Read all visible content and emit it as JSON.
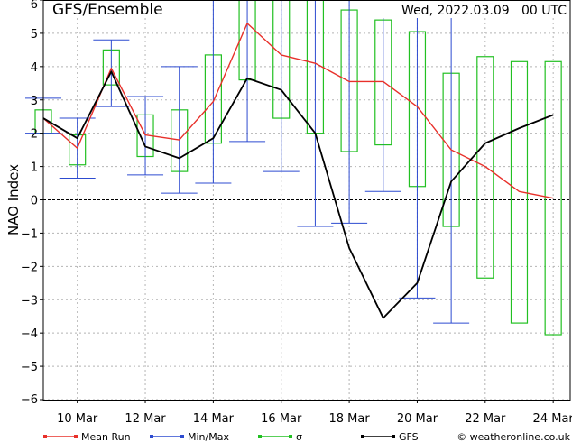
{
  "chart_data": {
    "type": "line",
    "title": "GFS/Ensemble",
    "subtitle": "Wed, 2022.03.09   00 UTC",
    "ylabel": "NAO Index",
    "xlabel": "",
    "xlim": [
      0,
      15.5
    ],
    "ylim": [
      -6,
      6
    ],
    "yticks": [
      -6,
      -5,
      -4,
      -3,
      -2,
      -1,
      0,
      1,
      2,
      3,
      4,
      5,
      6
    ],
    "xticks": [
      {
        "x": 1,
        "label": "10 Mar"
      },
      {
        "x": 3,
        "label": "12 Mar"
      },
      {
        "x": 5,
        "label": "14 Mar"
      },
      {
        "x": 7,
        "label": "16 Mar"
      },
      {
        "x": 9,
        "label": "18 Mar"
      },
      {
        "x": 11,
        "label": "20 Mar"
      },
      {
        "x": 13,
        "label": "22 Mar"
      },
      {
        "x": 15,
        "label": "24 Mar"
      }
    ],
    "x": [
      0,
      1,
      2,
      3,
      4,
      5,
      6,
      7,
      8,
      9,
      10,
      11,
      12,
      13,
      14,
      15,
      15.5
    ],
    "series": [
      {
        "name": "Mean Run",
        "color": "#e8302a",
        "values": [
          2.45,
          1.55,
          3.95,
          1.95,
          1.8,
          2.95,
          5.3,
          4.35,
          4.1,
          3.55,
          3.55,
          2.8,
          1.5,
          1.0,
          0.25,
          0.05,
          null
        ]
      },
      {
        "name": "GFS",
        "color": "#000000",
        "values": [
          2.45,
          1.85,
          3.85,
          1.6,
          1.25,
          1.85,
          3.65,
          3.3,
          2.0,
          -1.45,
          -3.55,
          -2.5,
          0.55,
          1.7,
          2.15,
          2.55,
          null
        ]
      }
    ],
    "minmax": {
      "name": "Min/Max",
      "color": "#2d4bd0",
      "min": [
        2.0,
        0.65,
        2.8,
        0.75,
        0.2,
        0.5,
        1.75,
        0.85,
        -0.8,
        -0.7,
        0.25,
        -2.95,
        -3.7,
        null,
        null,
        null,
        null
      ],
      "max": [
        3.05,
        2.45,
        4.8,
        3.1,
        4.0,
        6.0,
        6.0,
        6.0,
        6.0,
        6.0,
        6.0,
        6.0,
        6.0,
        null,
        null,
        null,
        null
      ]
    },
    "sigma": {
      "name": "σ",
      "color": "#22c022",
      "low": [
        2.0,
        1.05,
        3.45,
        1.3,
        0.85,
        1.7,
        3.6,
        2.45,
        2.0,
        1.45,
        1.65,
        0.4,
        -0.8,
        -2.35,
        -3.7,
        -4.05,
        null
      ],
      "high": [
        2.7,
        1.95,
        4.5,
        2.55,
        2.7,
        4.35,
        6.0,
        6.0,
        6.0,
        5.7,
        5.4,
        5.05,
        3.8,
        4.3,
        4.15,
        4.15,
        null
      ]
    },
    "zero_line": true,
    "grid": true,
    "legend": "bottom",
    "legend_items": [
      {
        "label": "Mean Run",
        "color": "#e8302a"
      },
      {
        "label": "Min/Max",
        "color": "#2d4bd0"
      },
      {
        "label": "σ",
        "color": "#22c022"
      },
      {
        "label": "GFS",
        "color": "#000000"
      }
    ],
    "credit": "© weatheronline.co.uk"
  }
}
